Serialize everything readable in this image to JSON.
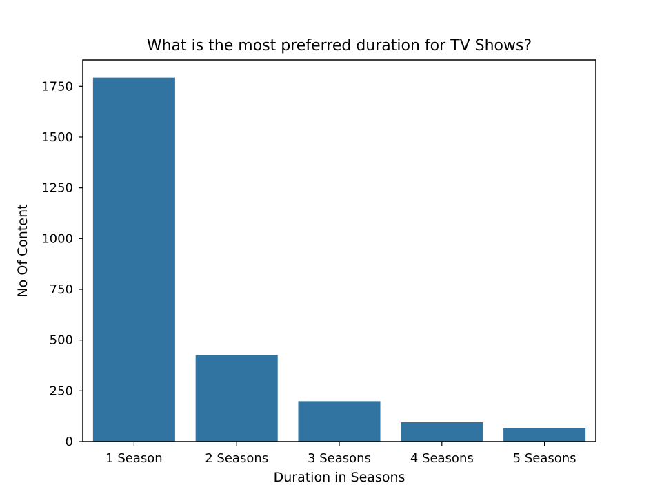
{
  "chart_data": {
    "type": "bar",
    "title": "What is the most preferred duration for TV Shows?",
    "xlabel": "Duration in Seasons",
    "ylabel": "No Of Content",
    "categories": [
      "1 Season",
      "2 Seasons",
      "3 Seasons",
      "4 Seasons",
      "5 Seasons"
    ],
    "values": [
      1793,
      425,
      199,
      95,
      65
    ],
    "ylim": [
      0,
      1880
    ],
    "yticks": [
      0,
      250,
      500,
      750,
      1000,
      1250,
      1500,
      1750
    ],
    "bar_color": "#3274a1",
    "grid": false,
    "legend": "none"
  }
}
